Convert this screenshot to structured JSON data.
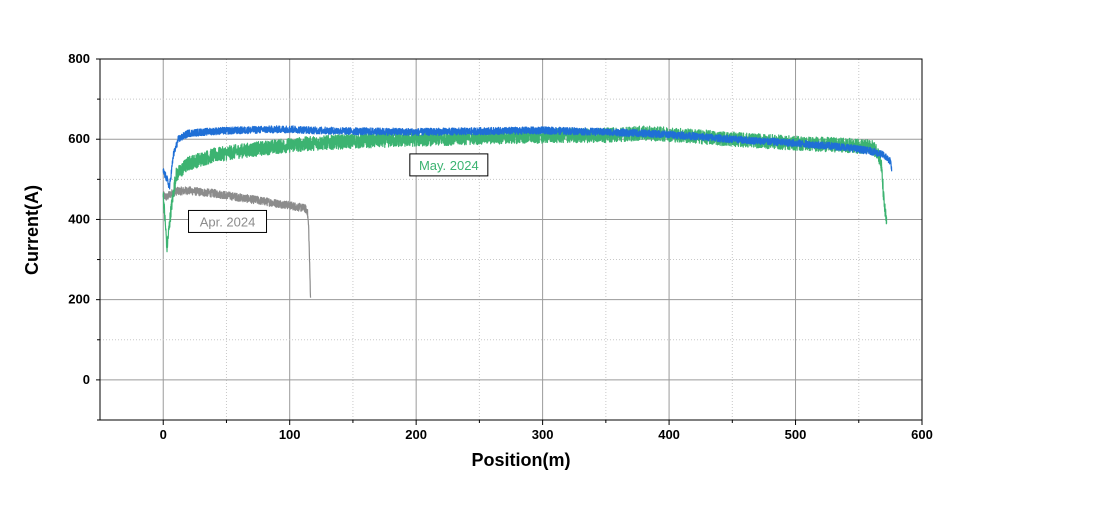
{
  "chart_data": {
    "type": "line",
    "title": "",
    "xlabel": "Position(m)",
    "ylabel": "Current(A)",
    "xlim": [
      -50,
      600
    ],
    "ylim": [
      -100,
      800
    ],
    "xticks": [
      0,
      100,
      200,
      300,
      400,
      500,
      600
    ],
    "yticks": [
      0,
      200,
      400,
      600,
      800
    ],
    "grid": true,
    "series": [
      {
        "name": "Apr. 2024",
        "color": "#8c8c8c",
        "x": [
          0,
          3,
          5,
          10,
          20,
          30,
          40,
          50,
          60,
          70,
          80,
          90,
          100,
          108,
          112,
          114,
          115,
          116,
          116.5
        ],
        "y": [
          460,
          455,
          462,
          470,
          472,
          468,
          465,
          460,
          455,
          450,
          445,
          440,
          435,
          430,
          428,
          420,
          380,
          260,
          205
        ]
      },
      {
        "name": "May. 2024",
        "color": "#3cb371",
        "x": [
          0,
          3,
          6,
          10,
          20,
          40,
          60,
          80,
          100,
          120,
          150,
          200,
          250,
          300,
          350,
          380,
          400,
          450,
          500,
          540,
          560,
          565,
          568,
          570,
          572
        ],
        "y": [
          460,
          330,
          420,
          510,
          540,
          560,
          570,
          578,
          585,
          590,
          595,
          600,
          605,
          608,
          610,
          615,
          612,
          600,
          590,
          585,
          580,
          570,
          530,
          440,
          390
        ]
      },
      {
        "name": "",
        "color": "#1f6fd6",
        "x": [
          0,
          3,
          5,
          8,
          12,
          20,
          40,
          60,
          80,
          100,
          120,
          150,
          200,
          250,
          300,
          350,
          400,
          450,
          500,
          540,
          560,
          570,
          575,
          576
        ],
        "y": [
          520,
          500,
          480,
          560,
          600,
          615,
          620,
          622,
          624,
          625,
          622,
          620,
          618,
          620,
          622,
          618,
          612,
          600,
          590,
          580,
          570,
          560,
          545,
          520
        ]
      }
    ],
    "annotations": [
      {
        "text": "Apr. 2024",
        "x": 20,
        "y": 395,
        "color": "#8c8c8c"
      },
      {
        "text": "May. 2024",
        "x": 195,
        "y": 536,
        "color": "#3cb371"
      }
    ]
  }
}
